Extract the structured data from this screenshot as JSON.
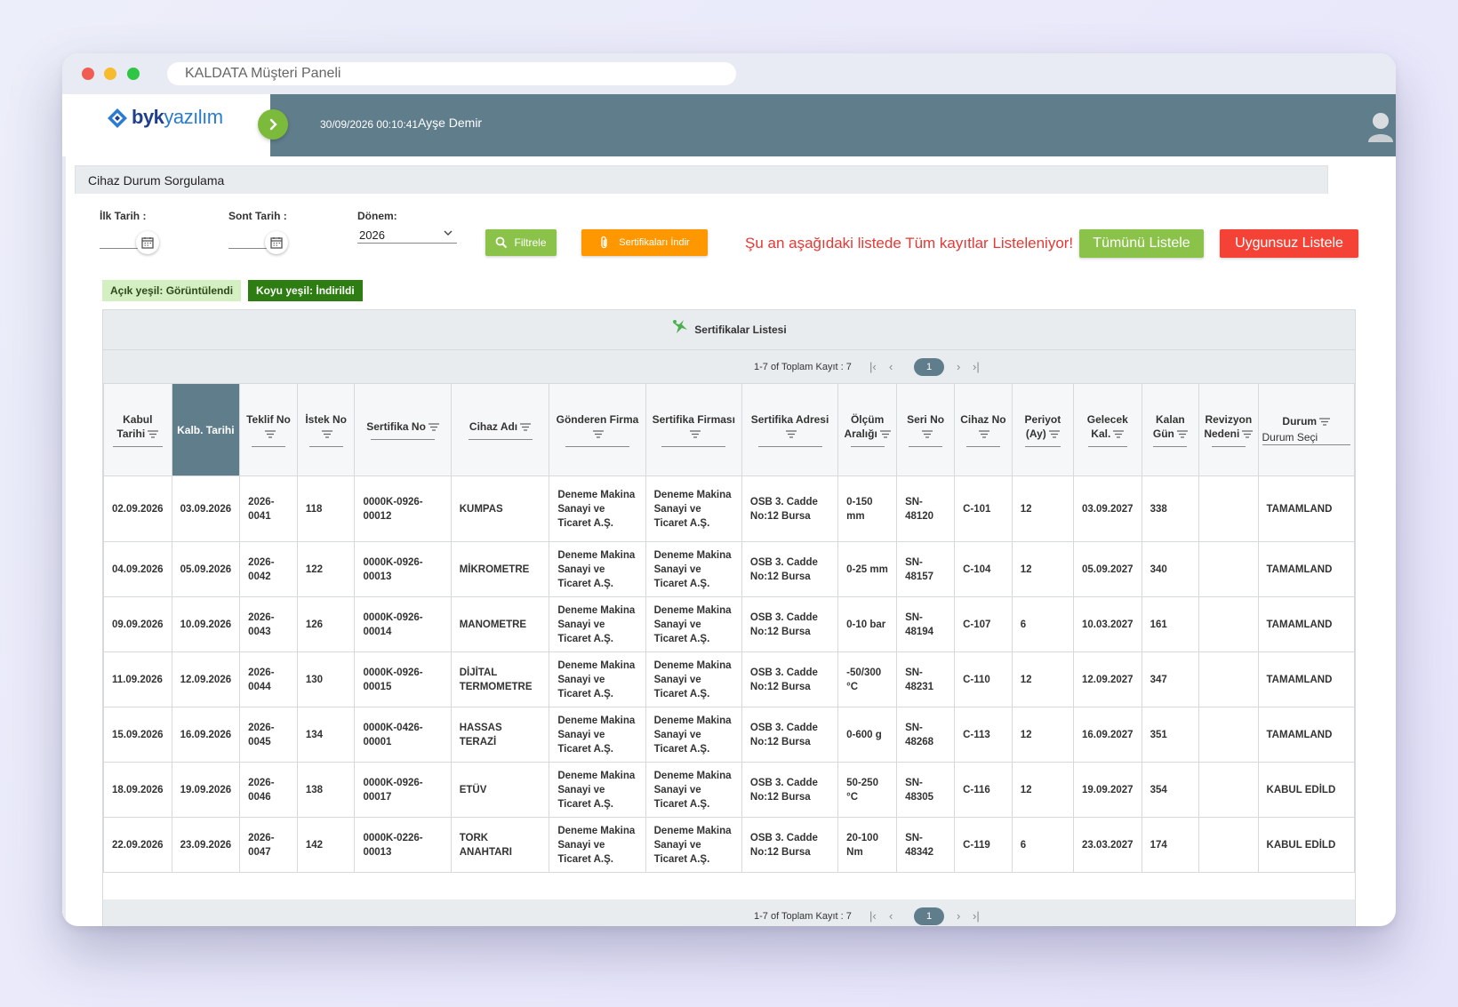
{
  "window": {
    "address": "KALDATA Müşteri Paneli"
  },
  "header": {
    "logo_bold": "byk",
    "logo_light": "yazılım",
    "datetime": "30/09/2026 00:10:41",
    "username": "Ayşe Demir"
  },
  "panel": {
    "title": "Cihaz Durum Sorgulama"
  },
  "filters": {
    "start_label": "İlk Tarih :",
    "end_label": "Sont Tarih :",
    "period_label": "Dönem:",
    "period_value": "2026",
    "filter_button": "Filtrele",
    "cert_button": "Sertifikaları İndir",
    "notice": "Şu an aşağıdaki listede Tüm kayıtlar Listeleniyor!",
    "all_button": "Tümünü Listele",
    "bad_button": "Uygunsuz Listele"
  },
  "legend": {
    "light": "Açık yeşil: Görüntülendi",
    "dark": "Koyu yeşil: İndirildi"
  },
  "grid": {
    "title": "Sertifikalar Listesi",
    "pager_info": "1-7 of Toplam Kayıt : 7",
    "page": "1",
    "columns": [
      "Kabul Tarihi",
      "Kalb. Tarihi",
      "Teklif No",
      "İstek No",
      "Sertifika No",
      "Cihaz Adı",
      "Gönderen Firma",
      "Sertifika Firması",
      "Sertifika Adresi",
      "Ölçüm Aralığı",
      "Seri No",
      "Cihaz No",
      "Periyot (Ay)",
      "Gelecek Kal.",
      "Kalan Gün",
      "Revizyon Nedeni",
      "Durum"
    ],
    "durum_placeholder": "Durum Seçi",
    "rows": [
      [
        "02.09.2026",
        "03.09.2026",
        "2026-0041",
        "118",
        "0000K-0926-00012",
        "KUMPAS",
        "Deneme Makina Sanayi ve Ticaret A.Ş.",
        "Deneme Makina Sanayi ve Ticaret A.Ş.",
        "OSB 3. Cadde No:12 Bursa",
        "0-150 mm",
        "SN-48120",
        "C-101",
        "12",
        "03.09.2027",
        "338",
        "",
        "TAMAMLAND"
      ],
      [
        "04.09.2026",
        "05.09.2026",
        "2026-0042",
        "122",
        "0000K-0926-00013",
        "MİKROMETRE",
        "Deneme Makina Sanayi ve Ticaret A.Ş.",
        "Deneme Makina Sanayi ve Ticaret A.Ş.",
        "OSB 3. Cadde No:12 Bursa",
        "0-25 mm",
        "SN-48157",
        "C-104",
        "12",
        "05.09.2027",
        "340",
        "",
        "TAMAMLAND"
      ],
      [
        "09.09.2026",
        "10.09.2026",
        "2026-0043",
        "126",
        "0000K-0926-00014",
        "MANOMETRE",
        "Deneme Makina Sanayi ve Ticaret A.Ş.",
        "Deneme Makina Sanayi ve Ticaret A.Ş.",
        "OSB 3. Cadde No:12 Bursa",
        "0-10 bar",
        "SN-48194",
        "C-107",
        "6",
        "10.03.2027",
        "161",
        "",
        "TAMAMLAND"
      ],
      [
        "11.09.2026",
        "12.09.2026",
        "2026-0044",
        "130",
        "0000K-0926-00015",
        "DİJİTAL TERMOMETRE",
        "Deneme Makina Sanayi ve Ticaret A.Ş.",
        "Deneme Makina Sanayi ve Ticaret A.Ş.",
        "OSB 3. Cadde No:12 Bursa",
        "-50/300 °C",
        "SN-48231",
        "C-110",
        "12",
        "12.09.2027",
        "347",
        "",
        "TAMAMLAND"
      ],
      [
        "15.09.2026",
        "16.09.2026",
        "2026-0045",
        "134",
        "0000K-0426-00001",
        "HASSAS TERAZİ",
        "Deneme Makina Sanayi ve Ticaret A.Ş.",
        "Deneme Makina Sanayi ve Ticaret A.Ş.",
        "OSB 3. Cadde No:12 Bursa",
        "0-600 g",
        "SN-48268",
        "C-113",
        "12",
        "16.09.2027",
        "351",
        "",
        "TAMAMLAND"
      ],
      [
        "18.09.2026",
        "19.09.2026",
        "2026-0046",
        "138",
        "0000K-0926-00017",
        "ETÜV",
        "Deneme Makina Sanayi ve Ticaret A.Ş.",
        "Deneme Makina Sanayi ve Ticaret A.Ş.",
        "OSB 3. Cadde No:12 Bursa",
        "50-250 °C",
        "SN-48305",
        "C-116",
        "12",
        "19.09.2027",
        "354",
        "",
        "KABUL EDİLD"
      ],
      [
        "22.09.2026",
        "23.09.2026",
        "2026-0047",
        "142",
        "0000K-0226-00013",
        "TORK ANAHTARI",
        "Deneme Makina Sanayi ve Ticaret A.Ş.",
        "Deneme Makina Sanayi ve Ticaret A.Ş.",
        "OSB 3. Cadde No:12 Bursa",
        "20-100 Nm",
        "SN-48342",
        "C-119",
        "6",
        "23.03.2027",
        "174",
        "",
        "KABUL EDİLD"
      ]
    ]
  },
  "colors": {
    "header": "#607d8b",
    "green": "#8bc34a",
    "orange": "#ff9800",
    "red": "#f44336",
    "legend_light": "#d4efc2",
    "legend_dark": "#2e7d12"
  }
}
